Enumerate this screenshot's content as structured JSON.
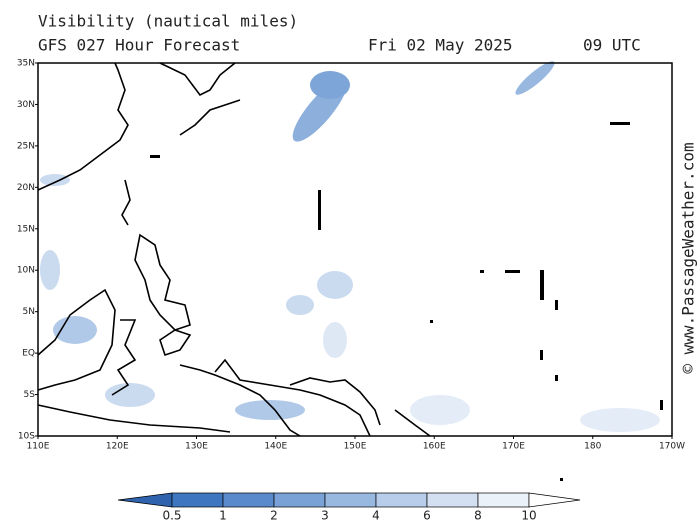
{
  "header": {
    "title": "Visibility (nautical miles)",
    "forecast": "GFS 027 Hour Forecast",
    "date": "Fri 02 May 2025",
    "time": "09 UTC"
  },
  "map": {
    "lat_labels": [
      "35N",
      "30N",
      "25N",
      "20N",
      "15N",
      "10N",
      "5N",
      "EQ",
      "5S",
      "10S"
    ],
    "lon_labels": [
      "110E",
      "120E",
      "130E",
      "140E",
      "150E",
      "160E",
      "170E",
      "180",
      "170W"
    ]
  },
  "colorbar": {
    "labels": [
      "0.5",
      "1",
      "2",
      "3",
      "4",
      "6",
      "8",
      "10"
    ],
    "colors": [
      "#2f63ad",
      "#3f76c0",
      "#5a8acb",
      "#7aa2d6",
      "#98b8e0",
      "#b7cdea",
      "#d3e0f2",
      "#ebf1f9",
      "#ffffff"
    ]
  },
  "credit": "© www.PassageWeather.com"
}
